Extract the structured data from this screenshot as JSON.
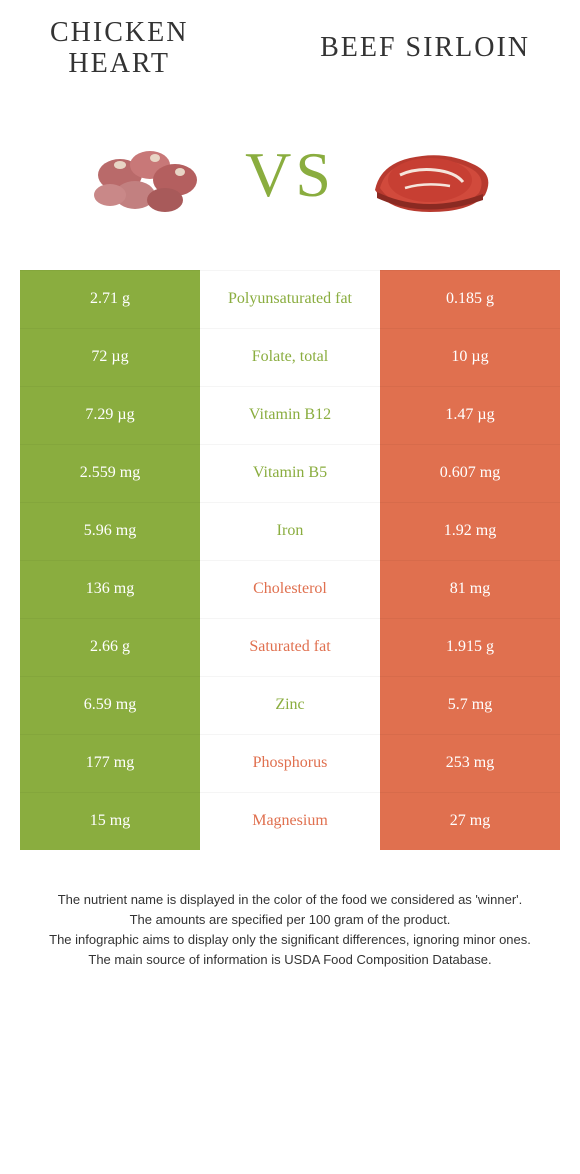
{
  "colors": {
    "left": "#8aad3f",
    "right": "#e0704f",
    "background": "#ffffff",
    "text": "#333333",
    "cell_text": "#ffffff"
  },
  "header": {
    "left_title_line1": "CHICKEN",
    "left_title_line2": "HEART",
    "right_title": "BEEF SIRLOIN",
    "vs": "VS"
  },
  "rows": [
    {
      "left": "2.71 g",
      "label": "Polyunsaturated fat",
      "right": "0.185 g",
      "winner": "left"
    },
    {
      "left": "72 µg",
      "label": "Folate, total",
      "right": "10 µg",
      "winner": "left"
    },
    {
      "left": "7.29 µg",
      "label": "Vitamin B12",
      "right": "1.47 µg",
      "winner": "left"
    },
    {
      "left": "2.559 mg",
      "label": "Vitamin B5",
      "right": "0.607 mg",
      "winner": "left"
    },
    {
      "left": "5.96 mg",
      "label": "Iron",
      "right": "1.92 mg",
      "winner": "left"
    },
    {
      "left": "136 mg",
      "label": "Cholesterol",
      "right": "81 mg",
      "winner": "right"
    },
    {
      "left": "2.66 g",
      "label": "Saturated fat",
      "right": "1.915 g",
      "winner": "right"
    },
    {
      "left": "6.59 mg",
      "label": "Zinc",
      "right": "5.7 mg",
      "winner": "left"
    },
    {
      "left": "177 mg",
      "label": "Phosphorus",
      "right": "253 mg",
      "winner": "right"
    },
    {
      "left": "15 mg",
      "label": "Magnesium",
      "right": "27 mg",
      "winner": "right"
    }
  ],
  "footer": {
    "line1": "The nutrient name is displayed in the color of the food we considered as 'winner'.",
    "line2": "The amounts are specified per 100 gram of the product.",
    "line3": "The infographic aims to display only the significant differences, ignoring minor ones.",
    "line4": "The main source of information is USDA Food Composition Database."
  }
}
